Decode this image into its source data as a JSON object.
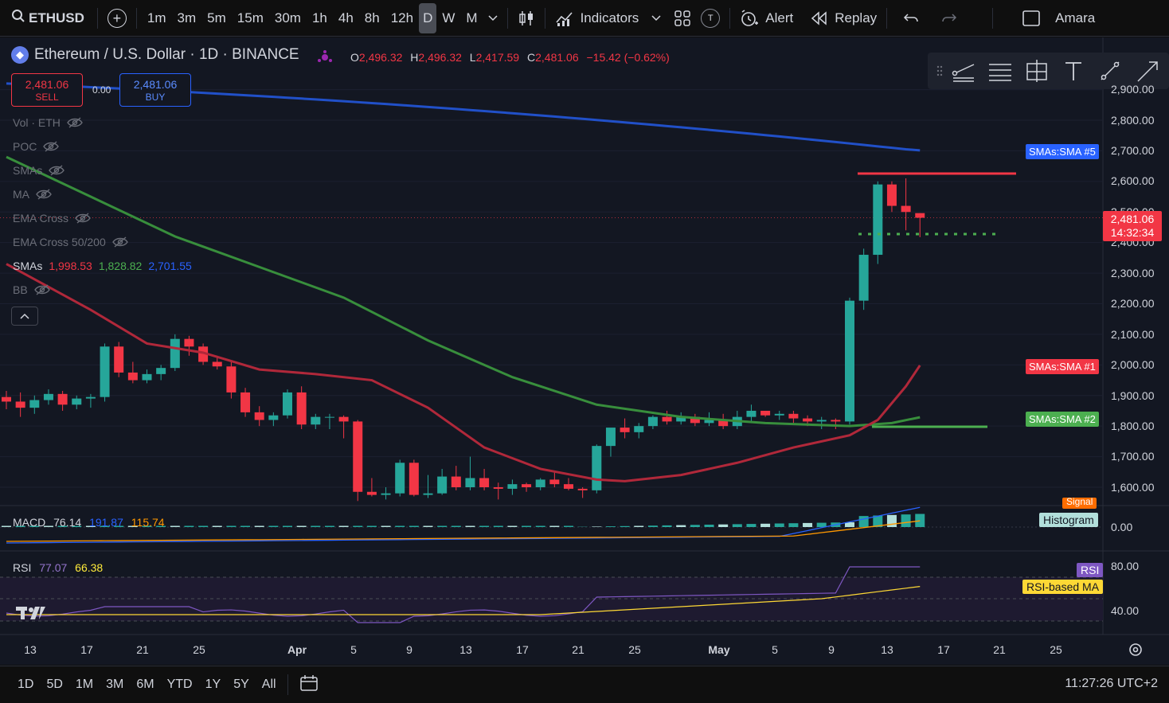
{
  "toolbar": {
    "symbol": "ETHUSD",
    "intervals": [
      "1m",
      "3m",
      "5m",
      "15m",
      "30m",
      "1h",
      "4h",
      "8h",
      "12h",
      "D",
      "W",
      "M"
    ],
    "active_interval": "D",
    "indicators_label": "Indicators",
    "t_label": "T",
    "alert_label": "Alert",
    "replay_label": "Replay",
    "user_label": "Amara"
  },
  "legend": {
    "title": "Ethereum / U.S. Dollar · 1D · BINANCE",
    "o_label": "O",
    "o_value": "2,496.32",
    "h_label": "H",
    "h_value": "2,496.32",
    "l_label": "L",
    "l_value": "2,417.59",
    "c_label": "C",
    "c_value": "2,481.06",
    "change": "−15.42 (−0.62%)"
  },
  "trade": {
    "sell_price": "2,481.06",
    "sell_label": "SELL",
    "spread": "0.00",
    "buy_price": "2,481.06",
    "buy_label": "BUY"
  },
  "indicators": {
    "vol": "Vol · ETH",
    "poc": "POC",
    "smas_hidden": "SMAs",
    "ma": "MA",
    "ema_cross": "EMA Cross",
    "ema_cross_50_200": "EMA Cross 50/200",
    "smas": "SMAs",
    "sma_v1": "1,998.53",
    "sma_v2": "1,828.82",
    "sma_v3": "2,701.55",
    "bb": "BB"
  },
  "price_axis": {
    "labels": [
      "2,900.00",
      "2,800.00",
      "2,700.00",
      "2,600.00",
      "2,500.00",
      "2,400.00",
      "2,300.00",
      "2,200.00",
      "2,100.00",
      "2,000.00",
      "1,900.00",
      "1,800.00",
      "1,700.00",
      "1,600.00"
    ],
    "last_price": "2,481.06",
    "countdown": "14:32:34",
    "sma5_tag": "SMAs:SMA #5",
    "sma1_tag": "SMAs:SMA #1",
    "sma2_tag": "SMAs:SMA #2"
  },
  "macd": {
    "label": "MACD",
    "v1": "76.14",
    "v2": "191.87",
    "v3": "115.74",
    "signal_tag": "Signal",
    "histogram_tag": "Histogram",
    "zero_label": "0.00"
  },
  "rsi": {
    "label": "RSI",
    "v1": "77.07",
    "v2": "66.38",
    "rsi_tag": "RSI",
    "ma_tag": "RSI-based MA",
    "label_80": "80.00",
    "label_40": "40.00"
  },
  "time_axis": [
    "13",
    "17",
    "21",
    "25",
    "Apr",
    "5",
    "9",
    "13",
    "17",
    "21",
    "25",
    "May",
    "5",
    "9",
    "13",
    "17",
    "21",
    "25"
  ],
  "bottom": {
    "ranges": [
      "1D",
      "5D",
      "1M",
      "3M",
      "6M",
      "YTD",
      "1Y",
      "5Y",
      "All"
    ],
    "clock": "11:27:26 UTC+2"
  },
  "colors": {
    "up": "#26a69a",
    "down": "#f23645",
    "sma_blue": "#2150c8",
    "sma_red": "#b0283a",
    "sma_green": "#388e3c",
    "accent": "#2962ff"
  },
  "chart_data": {
    "type": "candlestick",
    "series_lines": [
      {
        "name": "SMAs:SMA #5",
        "last": 2701.55
      },
      {
        "name": "SMAs:SMA #1",
        "last": 1998.53
      },
      {
        "name": "SMAs:SMA #2",
        "last": 1828.82
      }
    ],
    "ylim": [
      1550,
      2950
    ],
    "candles": [
      [
        1895,
        1915,
        1855,
        1880
      ],
      [
        1880,
        1910,
        1830,
        1860
      ],
      [
        1860,
        1900,
        1840,
        1885
      ],
      [
        1885,
        1920,
        1870,
        1905
      ],
      [
        1905,
        1915,
        1850,
        1870
      ],
      [
        1870,
        1900,
        1855,
        1890
      ],
      [
        1890,
        1905,
        1860,
        1895
      ],
      [
        1895,
        2070,
        1880,
        2060
      ],
      [
        2060,
        2075,
        1960,
        1975
      ],
      [
        1975,
        2010,
        1940,
        1950
      ],
      [
        1950,
        1985,
        1940,
        1970
      ],
      [
        1970,
        2000,
        1950,
        1990
      ],
      [
        1990,
        2100,
        1980,
        2085
      ],
      [
        2085,
        2095,
        2030,
        2060
      ],
      [
        2060,
        2070,
        2000,
        2010
      ],
      [
        2010,
        2030,
        1985,
        1995
      ],
      [
        1995,
        2010,
        1890,
        1910
      ],
      [
        1910,
        1925,
        1830,
        1845
      ],
      [
        1845,
        1865,
        1800,
        1820
      ],
      [
        1820,
        1845,
        1800,
        1835
      ],
      [
        1835,
        1920,
        1825,
        1910
      ],
      [
        1910,
        1930,
        1790,
        1805
      ],
      [
        1805,
        1840,
        1790,
        1830
      ],
      [
        1830,
        1840,
        1790,
        1830
      ],
      [
        1830,
        1835,
        1760,
        1815
      ],
      [
        1815,
        1820,
        1555,
        1585
      ],
      [
        1585,
        1630,
        1570,
        1575
      ],
      [
        1575,
        1600,
        1560,
        1580
      ],
      [
        1580,
        1690,
        1570,
        1680
      ],
      [
        1680,
        1690,
        1570,
        1575
      ],
      [
        1575,
        1640,
        1565,
        1580
      ],
      [
        1580,
        1660,
        1575,
        1635
      ],
      [
        1635,
        1670,
        1590,
        1600
      ],
      [
        1600,
        1700,
        1590,
        1630
      ],
      [
        1630,
        1660,
        1590,
        1600
      ],
      [
        1600,
        1615,
        1560,
        1595
      ],
      [
        1595,
        1625,
        1575,
        1610
      ],
      [
        1610,
        1615,
        1585,
        1600
      ],
      [
        1600,
        1630,
        1590,
        1625
      ],
      [
        1625,
        1650,
        1600,
        1610
      ],
      [
        1610,
        1630,
        1590,
        1595
      ],
      [
        1595,
        1600,
        1565,
        1590
      ],
      [
        1590,
        1740,
        1580,
        1735
      ],
      [
        1735,
        1790,
        1700,
        1795
      ],
      [
        1795,
        1825,
        1760,
        1780
      ],
      [
        1780,
        1810,
        1760,
        1800
      ],
      [
        1800,
        1835,
        1790,
        1830
      ],
      [
        1830,
        1850,
        1805,
        1815
      ],
      [
        1815,
        1845,
        1805,
        1830
      ],
      [
        1830,
        1840,
        1800,
        1810
      ],
      [
        1810,
        1845,
        1800,
        1820
      ],
      [
        1820,
        1840,
        1790,
        1800
      ],
      [
        1800,
        1850,
        1790,
        1830
      ],
      [
        1830,
        1870,
        1810,
        1850
      ],
      [
        1850,
        1845,
        1830,
        1835
      ],
      [
        1835,
        1850,
        1820,
        1840
      ],
      [
        1840,
        1850,
        1810,
        1825
      ],
      [
        1825,
        1835,
        1800,
        1815
      ],
      [
        1815,
        1830,
        1790,
        1820
      ],
      [
        1820,
        1825,
        1790,
        1815
      ],
      [
        1815,
        2220,
        1805,
        2210
      ],
      [
        2210,
        2380,
        2180,
        2360
      ],
      [
        2360,
        2600,
        2330,
        2590
      ],
      [
        2590,
        2600,
        2500,
        2520
      ],
      [
        2520,
        2610,
        2440,
        2500
      ],
      [
        2496.32,
        2496.32,
        2417.59,
        2481.06
      ]
    ]
  }
}
